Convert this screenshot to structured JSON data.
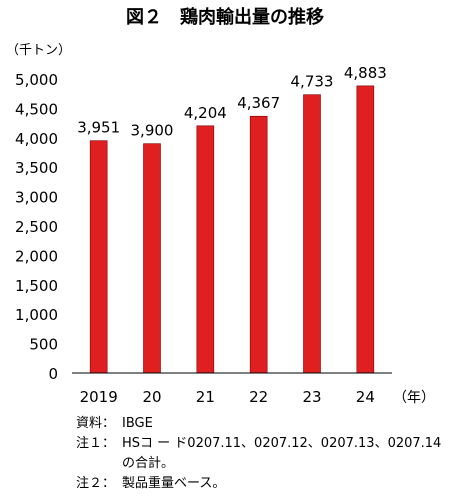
{
  "chart_data": {
    "type": "bar",
    "title": "図２　鶏肉輸出量の推移",
    "y_unit_label": "（千トン）",
    "x_unit_label": "（年）",
    "categories": [
      "2019",
      "20",
      "21",
      "22",
      "23",
      "24"
    ],
    "series": [
      {
        "values": [
          3951,
          3900,
          4204,
          4367,
          4733,
          4883
        ]
      }
    ],
    "data_labels": [
      "3,951",
      "3,900",
      "4,204",
      "4,367",
      "4,733",
      "4,883"
    ],
    "y_ticks": [
      "0",
      "500",
      "1,000",
      "1,500",
      "2,000",
      "2,500",
      "3,000",
      "3,500",
      "4,000",
      "4,500",
      "5,000"
    ],
    "ylim": [
      0,
      5000
    ],
    "grid": false,
    "bar_color": "#e02020",
    "bar_edge_color": "#7a0000"
  },
  "notes": [
    {
      "label": "資料：",
      "text": "IBGE"
    },
    {
      "label": "注１：",
      "text": "HSコ ー ド0207.11、0207.12、0207.13、0207.14の合計。"
    },
    {
      "label": "注２：",
      "text": "製品重量ベース。"
    }
  ]
}
